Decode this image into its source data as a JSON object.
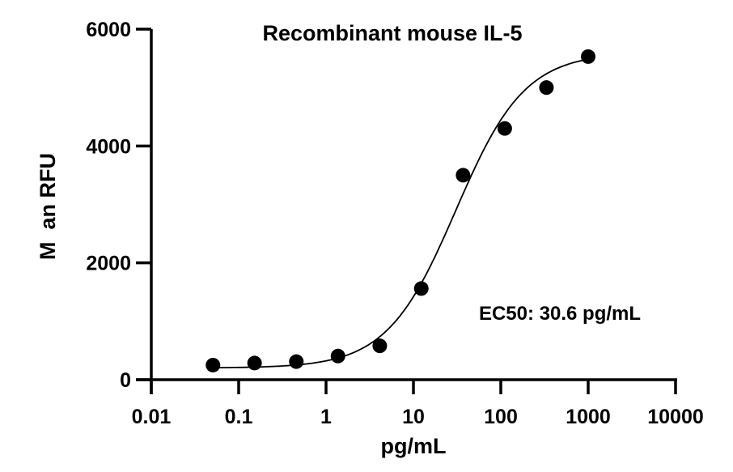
{
  "chart_data": {
    "type": "scatter",
    "title": "Recombinant mouse IL-5",
    "xlabel": "pg/mL",
    "ylabel": "M  an RFU",
    "xscale": "log",
    "xlim": [
      0.01,
      10000
    ],
    "ylim": [
      0,
      6000
    ],
    "xticks": [
      "0.01",
      "0.1",
      "1",
      "10",
      "100",
      "1000",
      "10000"
    ],
    "xtick_values": [
      0.01,
      0.1,
      1,
      10,
      100,
      1000,
      10000
    ],
    "yticks": [
      "0",
      "2000",
      "4000",
      "6000"
    ],
    "ytick_values": [
      0,
      2000,
      4000,
      6000
    ],
    "grid": false,
    "annotation": "EC50: 30.6 pg/mL",
    "points": {
      "x": [
        0.0508,
        0.152,
        0.457,
        1.37,
        4.12,
        12.3,
        37.0,
        111,
        333,
        1000
      ],
      "y": [
        250,
        285,
        310,
        405,
        580,
        1560,
        3500,
        4300,
        5000,
        5530
      ]
    },
    "fit": {
      "model": "4PL",
      "bottom": 200,
      "top": 5600,
      "ec50": 30.6,
      "hill": 1.1
    },
    "colors": {
      "marks": "#000000"
    }
  }
}
